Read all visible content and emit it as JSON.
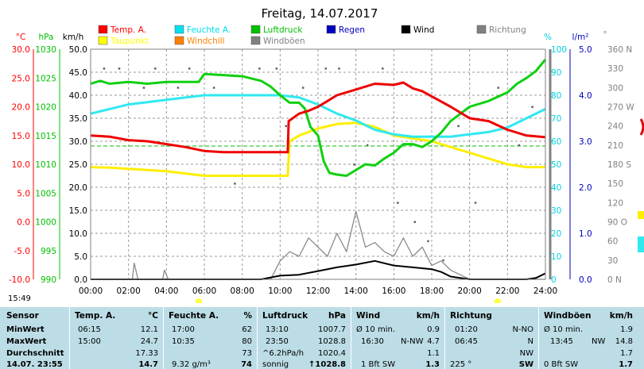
{
  "chart_data": {
    "type": "line",
    "title": "Freitag, 14.07.2017",
    "x_ticks": [
      "00:00",
      "02:00",
      "04:00",
      "06:00",
      "08:00",
      "10:00",
      "12:00",
      "14:00",
      "16:00",
      "18:00",
      "20:00",
      "22:00",
      "24:00"
    ],
    "axes": {
      "temp_c": {
        "label": "°C",
        "ticks": [
          "30.0",
          "25.0",
          "20.0",
          "15.0",
          "10.0",
          "5.0",
          "0.0",
          "-5.0",
          "-10.0"
        ],
        "range": [
          -10,
          30
        ],
        "color": "#ff0000"
      },
      "hpa": {
        "label": "hPa",
        "ticks": [
          "1030",
          "1025",
          "1020",
          "1015",
          "1010",
          "1005",
          "1000",
          "995",
          "990"
        ],
        "range": [
          990,
          1030
        ],
        "color": "#00c000"
      },
      "kmh": {
        "label": "km/h",
        "ticks": [
          "50.0",
          "45.0",
          "40.0",
          "35.0",
          "30.0",
          "25.0",
          "20.0",
          "15.0",
          "10.0",
          "5.0",
          "0.0"
        ],
        "range": [
          0,
          50
        ],
        "color": "#000000"
      },
      "percent": {
        "label": "%",
        "ticks": [
          "100",
          "90",
          "80",
          "70",
          "60",
          "50",
          "40",
          "30",
          "20",
          "10",
          "0"
        ],
        "range": [
          0,
          100
        ],
        "color": "#00d0e0"
      },
      "rain": {
        "label": "l/m²",
        "ticks": [
          "5.0",
          "4.0",
          "3.0",
          "2.0",
          "1.0",
          "0.0"
        ],
        "range": [
          0,
          5
        ],
        "color": "#0000c0"
      },
      "direction": {
        "label": "°",
        "ticks": [
          "360 N",
          "330",
          "300",
          "270 W",
          "240",
          "210",
          "180 S",
          "150",
          "120",
          "90 O",
          "60",
          "30",
          "0 N"
        ],
        "range": [
          0,
          360
        ],
        "color": "#808080"
      }
    },
    "legend": [
      {
        "name": "Temp. A.",
        "color": "#ff0000"
      },
      {
        "name": "Feuchte A.",
        "color": "#00e0f0"
      },
      {
        "name": "Luftdruck",
        "color": "#00c000"
      },
      {
        "name": "Regen",
        "color": "#0000c0"
      },
      {
        "name": "Wind",
        "color": "#000000"
      },
      {
        "name": "Richtung",
        "color": "#808080"
      },
      {
        "name": "Taupunkt",
        "color": "#ffff00"
      },
      {
        "name": "Windchill",
        "color": "#ff8000"
      },
      {
        "name": "Windböen",
        "color": "#808080"
      }
    ],
    "series": [
      {
        "name": "Temp. A.",
        "axis": "temp_c",
        "x": [
          0,
          1,
          2,
          3,
          4,
          5,
          6,
          7,
          8,
          9,
          10.4,
          10.45,
          11,
          11.5,
          12,
          12.5,
          13,
          14,
          15,
          16,
          16.5,
          17,
          17.5,
          18,
          19,
          20,
          21,
          22,
          23,
          24
        ],
        "values": [
          15.0,
          14.8,
          14.2,
          14.0,
          13.5,
          13.0,
          12.3,
          12.1,
          12.1,
          12.1,
          12.1,
          17.5,
          18.8,
          19.3,
          20.0,
          21.0,
          22.0,
          23.0,
          24.0,
          23.8,
          24.2,
          23.2,
          22.7,
          21.8,
          20.0,
          18.0,
          17.5,
          16.0,
          15.0,
          14.7
        ]
      },
      {
        "name": "Feuchte A.",
        "axis": "percent",
        "x": [
          0,
          1,
          2,
          3,
          4,
          5,
          6,
          7,
          8,
          9,
          10,
          11,
          12,
          13,
          14,
          15,
          16,
          17,
          18,
          19,
          20,
          21,
          22,
          23,
          24
        ],
        "values": [
          72,
          74,
          76,
          77,
          78,
          79,
          80,
          80,
          80,
          80,
          80,
          79,
          76,
          72,
          69,
          65,
          63,
          62,
          62,
          62,
          63,
          64,
          66,
          70,
          74
        ]
      },
      {
        "name": "Taupunkt",
        "axis": "temp_c",
        "x": [
          0,
          1,
          2,
          3,
          4,
          5,
          6,
          7,
          8,
          9,
          10,
          10.4,
          10.5,
          11,
          12,
          13,
          14,
          15,
          16,
          17,
          18,
          19,
          20,
          21,
          22,
          23,
          24
        ],
        "values": [
          9.5,
          9.4,
          9.2,
          9.0,
          8.8,
          8.4,
          8.0,
          8.0,
          8.0,
          8.0,
          8.0,
          8.0,
          14.0,
          15.0,
          16.2,
          17.0,
          17.2,
          16.5,
          15.0,
          14.5,
          14.0,
          13.0,
          12.0,
          11.0,
          10.0,
          9.5,
          9.5
        ]
      },
      {
        "name": "Luftdruck",
        "axis": "hpa",
        "x": [
          0,
          0.5,
          1,
          2,
          3,
          4,
          5,
          5.7,
          6,
          7,
          8,
          9,
          9.5,
          10,
          10.5,
          11,
          11.3,
          11.6,
          12,
          12.3,
          12.6,
          13,
          13.5,
          14,
          14.5,
          15,
          15.5,
          16,
          16.5,
          17,
          17.5,
          18,
          18.5,
          19,
          20,
          21,
          22,
          22.5,
          23,
          23.5,
          24
        ],
        "values": [
          1024.0,
          1024.5,
          1024.0,
          1024.3,
          1024.0,
          1024.3,
          1024.3,
          1024.3,
          1025.7,
          1025.5,
          1025.3,
          1024.5,
          1023.5,
          1022.0,
          1020.7,
          1020.7,
          1019.7,
          1016.5,
          1015.0,
          1010.5,
          1008.5,
          1008.2,
          1008.0,
          1009.0,
          1010.0,
          1009.8,
          1011.0,
          1012.0,
          1013.5,
          1013.5,
          1013.0,
          1014.0,
          1015.5,
          1017.5,
          1020.0,
          1021.0,
          1022.5,
          1024.0,
          1025.0,
          1026.2,
          1028.2
        ]
      },
      {
        "name": "Wind",
        "axis": "kmh",
        "x": [
          0,
          8,
          9,
          10,
          11,
          12,
          13,
          14,
          15,
          16,
          17,
          18,
          18.5,
          19,
          20,
          21,
          22,
          23,
          23.5,
          24
        ],
        "values": [
          0,
          0,
          0,
          0.8,
          1.0,
          1.8,
          2.6,
          3.2,
          4.0,
          3.0,
          2.6,
          2.2,
          1.6,
          0.6,
          0,
          0,
          0,
          0,
          0.3,
          1.3
        ]
      },
      {
        "name": "Windböen",
        "axis": "kmh",
        "x": [
          0,
          2.2,
          2.3,
          2.5,
          3.8,
          3.9,
          4.1,
          9.5,
          10,
          10.5,
          11,
          11.5,
          12,
          12.5,
          13,
          13.5,
          14,
          14.5,
          15,
          15.5,
          16,
          16.5,
          17,
          17.5,
          18,
          18.5,
          19,
          19.5,
          20,
          24
        ],
        "values": [
          0,
          0,
          3.5,
          0,
          0,
          2.0,
          0,
          0,
          4.0,
          6.0,
          5.0,
          9.0,
          7.0,
          5.0,
          10.0,
          6.0,
          14.8,
          7.0,
          8.0,
          6.0,
          5.0,
          9.0,
          5.0,
          7.0,
          3.0,
          4.0,
          2.0,
          1.0,
          0,
          0
        ]
      },
      {
        "name": "Richtung",
        "axis": "direction",
        "scatter": true,
        "x": [
          0.7,
          1.5,
          2.8,
          3.4,
          4.6,
          5.2,
          6.5,
          7.6,
          8.9,
          9.8,
          10.3,
          11.2,
          12.4,
          13.1,
          13.9,
          14.6,
          15.4,
          16.2,
          17.1,
          17.8,
          18.6,
          19.4,
          20.3,
          21.5,
          22.6,
          23.3
        ],
        "values": [
          330,
          330,
          300,
          330,
          300,
          330,
          300,
          150,
          330,
          330,
          240,
          300,
          330,
          330,
          180,
          210,
          330,
          120,
          90,
          60,
          30,
          240,
          120,
          300,
          210,
          270
        ]
      }
    ],
    "sun": {
      "sunrise": "05:21",
      "sunset": "21:12"
    },
    "clock": "15:49"
  },
  "table": {
    "row_labels": [
      "Sensor",
      "MinWert",
      "MaxWert",
      "Durchschnitt",
      "14.07. 23:55"
    ],
    "temp": {
      "title": "Temp. A.",
      "unit": "°C",
      "r0": [
        "06:15",
        "12.1"
      ],
      "r1": [
        "15:00",
        "24.7"
      ],
      "r2": [
        "",
        "17.33"
      ],
      "r3": [
        "",
        "14.7"
      ]
    },
    "hum": {
      "title": "Feuchte A.",
      "unit": "%",
      "r0": [
        "17:00",
        "62"
      ],
      "r1": [
        "10:35",
        "80"
      ],
      "r2": [
        "",
        "73"
      ],
      "r3": [
        "9.32 g/m³",
        "74"
      ]
    },
    "press": {
      "title": "Luftdruck",
      "unit": "hPa",
      "r0": [
        "13:10",
        "1007.7"
      ],
      "r1": [
        "23:50",
        "1028.8"
      ],
      "r2": [
        "^6.2hPa/h",
        "1020.4"
      ],
      "r3": [
        "sonnig",
        "↑1028.8"
      ]
    },
    "wind": {
      "title": "Wind",
      "unit": "km/h",
      "r0": [
        "Ø 10 min.",
        "",
        "0.9"
      ],
      "r1": [
        "16:30",
        "N-NW",
        "4.7"
      ],
      "r2": [
        "",
        "",
        "1.1"
      ],
      "r3": [
        "1 Bft SW",
        "",
        "1.3"
      ]
    },
    "dir": {
      "title": "Richtung",
      "unit": "",
      "r0": [
        "01:20",
        "N-NO"
      ],
      "r1": [
        "06:45",
        "N"
      ],
      "r2": [
        "",
        "NW"
      ],
      "r3": [
        "225 °",
        "SW"
      ]
    },
    "gust": {
      "title": "Windböen",
      "unit": "km/h",
      "r0": [
        "Ø 10 min.",
        "",
        "1.9"
      ],
      "r1": [
        "13:45",
        "NW",
        "14.8"
      ],
      "r2": [
        "",
        "",
        "1.7"
      ],
      "r3": [
        "0 Bft SW",
        "",
        "1.7"
      ]
    }
  }
}
